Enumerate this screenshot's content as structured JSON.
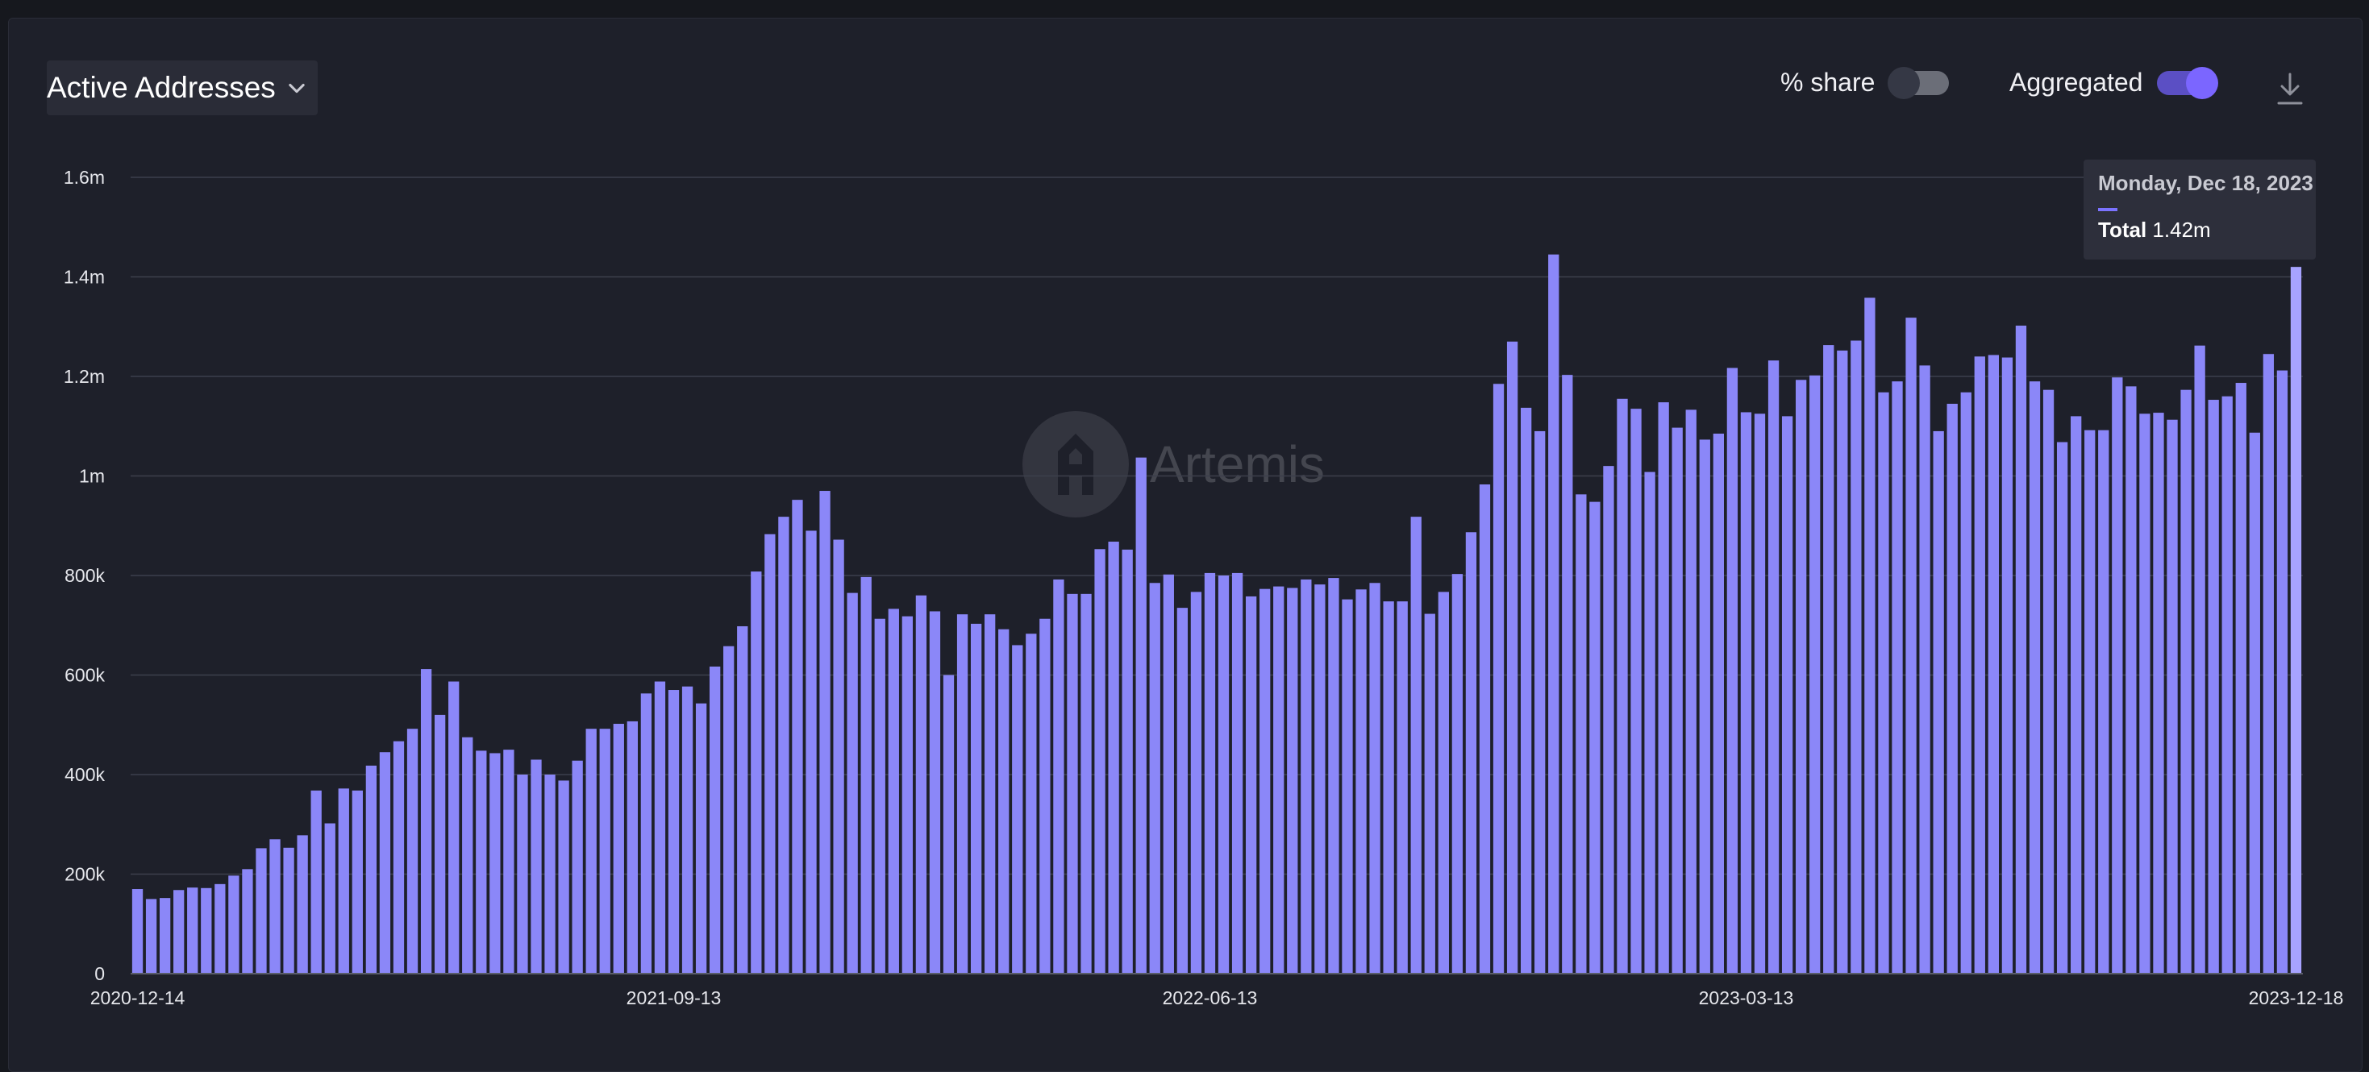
{
  "header": {
    "metric_label": "Active Addresses",
    "toggles": [
      {
        "label": "% share",
        "state": "off"
      },
      {
        "label": "Aggregated",
        "state": "on"
      }
    ]
  },
  "watermark": "Artemis",
  "tooltip": {
    "date": "Monday, Dec 18, 2023",
    "series_label": "Total",
    "value": "1.42m"
  },
  "colors": {
    "bar": "#8b87f8",
    "bar_highlight": "#a7a3ff",
    "accent": "#7b66ff",
    "grid": "#3c3f4c",
    "background": "#1e202a"
  },
  "chart_data": {
    "type": "bar",
    "title": "",
    "xlabel": "",
    "ylabel": "",
    "ylim": [
      0,
      1600000
    ],
    "y_ticks": [
      {
        "value": 0,
        "label": "0"
      },
      {
        "value": 200000,
        "label": "200k"
      },
      {
        "value": 400000,
        "label": "400k"
      },
      {
        "value": 600000,
        "label": "600k"
      },
      {
        "value": 800000,
        "label": "800k"
      },
      {
        "value": 1000000,
        "label": "1m"
      },
      {
        "value": 1200000,
        "label": "1.2m"
      },
      {
        "value": 1400000,
        "label": "1.4m"
      },
      {
        "value": 1600000,
        "label": "1.6m"
      }
    ],
    "x_tick_labels": [
      {
        "index": 0,
        "label": "2020-12-14"
      },
      {
        "index": 39,
        "label": "2021-09-13"
      },
      {
        "index": 78,
        "label": "2022-06-13"
      },
      {
        "index": 117,
        "label": "2023-03-13"
      },
      {
        "index": 157,
        "label": "2023-12-18"
      }
    ],
    "grid": true,
    "legend": "none",
    "start_week": "2020-12-14",
    "frequency": "weekly",
    "highlight_index": 157,
    "values": [
      170000,
      150000,
      152000,
      168000,
      173000,
      172000,
      180000,
      197000,
      210000,
      252000,
      270000,
      253000,
      278000,
      368000,
      302000,
      372000,
      368000,
      418000,
      445000,
      467000,
      492000,
      612000,
      520000,
      587000,
      475000,
      448000,
      443000,
      450000,
      400000,
      430000,
      400000,
      388000,
      428000,
      492000,
      492000,
      502000,
      507000,
      563000,
      587000,
      570000,
      577000,
      543000,
      617000,
      658000,
      698000,
      808000,
      883000,
      918000,
      952000,
      890000,
      970000,
      872000,
      765000,
      797000,
      713000,
      733000,
      718000,
      760000,
      728000,
      600000,
      722000,
      703000,
      722000,
      692000,
      660000,
      683000,
      713000,
      792000,
      763000,
      763000,
      853000,
      868000,
      852000,
      1037000,
      785000,
      802000,
      735000,
      767000,
      805000,
      800000,
      805000,
      758000,
      773000,
      778000,
      775000,
      792000,
      782000,
      795000,
      752000,
      772000,
      785000,
      748000,
      748000,
      918000,
      723000,
      767000,
      803000,
      887000,
      983000,
      1185000,
      1270000,
      1137000,
      1090000,
      1445000,
      1203000,
      963000,
      948000,
      1020000,
      1155000,
      1135000,
      1008000,
      1148000,
      1097000,
      1133000,
      1073000,
      1085000,
      1217000,
      1128000,
      1125000,
      1232000,
      1120000,
      1193000,
      1202000,
      1263000,
      1252000,
      1272000,
      1358000,
      1168000,
      1190000,
      1318000,
      1222000,
      1090000,
      1145000,
      1168000,
      1240000,
      1243000,
      1238000,
      1302000,
      1190000,
      1173000,
      1068000,
      1120000,
      1092000,
      1092000,
      1198000,
      1180000,
      1125000,
      1127000,
      1113000,
      1173000,
      1262000,
      1153000,
      1160000,
      1187000,
      1087000,
      1245000,
      1212000,
      1420000
    ]
  }
}
